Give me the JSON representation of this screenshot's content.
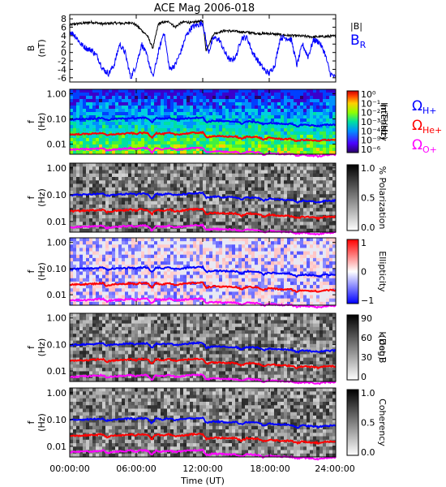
{
  "chart_data": {
    "type": "spectrogram",
    "title": "ACE Mag 2006-018",
    "xlabel": "Time (UT)",
    "x_ticks": [
      "00:00:00",
      "06:00:00",
      "12:00:00",
      "18:00:00",
      "24:00:00"
    ],
    "xlim_hours": [
      0,
      24
    ],
    "colors": {
      "black": "#000000",
      "blue": "#0000ff",
      "red": "#ff0000",
      "magenta": "#ff00ff"
    },
    "panels": [
      {
        "type": "line",
        "ylabel": [
          "B",
          "(nT)"
        ],
        "ylim": [
          -7,
          9
        ],
        "y_ticks": [
          "-6",
          "-4",
          "-2",
          "0",
          "2",
          "4",
          "6",
          "8"
        ],
        "y_tick_values": [
          -6,
          -4,
          -2,
          0,
          2,
          4,
          6,
          8
        ],
        "legend": [
          {
            "label": "|B|",
            "color": "#000000"
          },
          {
            "label": "B",
            "sub": "R",
            "color": "#0000ff"
          }
        ],
        "series": [
          {
            "name": "|B|",
            "color": "#000000",
            "x": [
              0,
              0.5,
              1,
              2,
              2.5,
              3,
              4,
              5,
              5.5,
              6,
              7,
              7.5,
              8,
              8.5,
              9,
              9.5,
              10,
              10.5,
              11,
              11.5,
              12,
              12.3,
              13,
              14,
              15,
              16,
              17,
              18,
              19,
              20,
              21,
              22,
              23,
              24
            ],
            "y": [
              6.5,
              6.8,
              6.9,
              7.2,
              7.0,
              6.8,
              7.0,
              6.9,
              7.2,
              6.5,
              4.0,
              1.0,
              6.8,
              7.2,
              7.3,
              6.0,
              7.0,
              7.3,
              7.0,
              7.4,
              7.5,
              0.5,
              4.5,
              5.2,
              5.0,
              4.8,
              4.5,
              4.5,
              4.2,
              4.0,
              3.9,
              3.7,
              3.8,
              3.9
            ]
          },
          {
            "name": "B",
            "color": "#0000ff",
            "x": [
              0,
              0.5,
              1,
              1.5,
              2,
              2.5,
              3,
              3.5,
              4,
              4.5,
              5,
              5.5,
              6,
              6.5,
              7,
              7.5,
              8,
              8.5,
              9,
              9.5,
              10,
              10.5,
              11,
              11.5,
              12,
              12.5,
              13,
              13.5,
              14,
              14.5,
              15,
              15.5,
              16,
              16.5,
              17,
              17.5,
              18,
              18.5,
              19,
              19.5,
              20,
              20.5,
              21,
              21.5,
              22,
              22.5,
              23,
              23.5,
              24
            ],
            "y": [
              5,
              4,
              2,
              1,
              0.5,
              -1,
              -4,
              -5,
              -3,
              2,
              0,
              -6,
              -3,
              2,
              -1,
              -6,
              0,
              5,
              -4,
              -3,
              0,
              4,
              6,
              6.5,
              7,
              0,
              3.5,
              3,
              0,
              -2,
              -1,
              3.5,
              3.5,
              0,
              -2,
              -4,
              -5,
              -3,
              3.5,
              3.5,
              3,
              -3,
              2,
              -1,
              3,
              2.5,
              0,
              -5,
              -6
            ]
          }
        ]
      },
      {
        "type": "heatmap",
        "ylabel": [
          "f",
          "(Hz)"
        ],
        "y_ticks": [
          "1.00",
          "0.10",
          "0.01"
        ],
        "y_tick_values": [
          1.0,
          0.1,
          0.01
        ],
        "ylim": [
          0.004,
          1.5
        ],
        "yscale": "log",
        "colorbar": {
          "label": [
            "Intensity",
            "(nT²/Hz)"
          ],
          "ticks": [
            "10⁰",
            "10⁻¹",
            "10⁻²",
            "10⁻³",
            "10⁻⁴",
            "10⁻⁵",
            "10⁻⁶"
          ],
          "colormap": "rainbow"
        },
        "legend": [
          {
            "label": "Ω",
            "sub": "H+",
            "color": "#0000ff"
          },
          {
            "label": "Ω",
            "sub": "He+",
            "color": "#ff0000"
          },
          {
            "label": "Ω",
            "sub": "O+",
            "color": "#ff00ff"
          }
        ]
      },
      {
        "type": "heatmap",
        "ylabel": [
          "f",
          "(Hz)"
        ],
        "y_ticks": [
          "1.00",
          "0.10",
          "0.01"
        ],
        "y_tick_values": [
          1.0,
          0.1,
          0.01
        ],
        "ylim": [
          0.004,
          1.5
        ],
        "yscale": "log",
        "colorbar": {
          "label": [
            "% Polarization"
          ],
          "ticks": [
            "1.0",
            "0.5",
            "0.0"
          ],
          "colormap": "gray"
        }
      },
      {
        "type": "heatmap",
        "ylabel": [
          "f",
          "(Hz)"
        ],
        "y_ticks": [
          "1.00",
          "0.10",
          "0.01"
        ],
        "y_tick_values": [
          1.0,
          0.1,
          0.01
        ],
        "ylim": [
          0.004,
          1.5
        ],
        "yscale": "log",
        "colorbar": {
          "label": [
            "Ellipticity"
          ],
          "ticks": [
            "1",
            "0",
            "−1"
          ],
          "colormap": "bwr"
        }
      },
      {
        "type": "heatmap",
        "ylabel": [
          "f",
          "(Hz)"
        ],
        "y_ticks": [
          "1.00",
          "0.10",
          "0.01"
        ],
        "y_tick_values": [
          1.0,
          0.1,
          0.01
        ],
        "ylim": [
          0.004,
          1.5
        ],
        "yscale": "log",
        "colorbar": {
          "label": [
            "k dot B",
            "(Deg)"
          ],
          "ticks": [
            "90",
            "60",
            "30",
            "0"
          ],
          "colormap": "gray"
        }
      },
      {
        "type": "heatmap",
        "ylabel": [
          "f",
          "(Hz)"
        ],
        "y_ticks": [
          "1.00",
          "0.10",
          "0.01"
        ],
        "y_tick_values": [
          1.0,
          0.1,
          0.01
        ],
        "ylim": [
          0.004,
          1.5
        ],
        "yscale": "log",
        "colorbar": {
          "label": [
            "Coherency"
          ],
          "ticks": [
            "1.0",
            "0.5",
            "0.0"
          ],
          "colormap": "gray"
        }
      }
    ],
    "gyrofrequency_curves": {
      "x": [
        0,
        1,
        2,
        3,
        3.3,
        4,
        5,
        5.5,
        6,
        6.2,
        7,
        7.4,
        7.8,
        8.3,
        9,
        9.5,
        10,
        11,
        12,
        12.3,
        13,
        14,
        15,
        15.5,
        16,
        17,
        17.5,
        18,
        19,
        20,
        20.5,
        21,
        22,
        22.5,
        23,
        24
      ],
      "H+": [
        0.095,
        0.1,
        0.102,
        0.11,
        0.09,
        0.1,
        0.105,
        0.11,
        0.1,
        0.11,
        0.11,
        0.07,
        0.11,
        0.1,
        0.11,
        0.095,
        0.1,
        0.11,
        0.115,
        0.075,
        0.085,
        0.08,
        0.08,
        0.065,
        0.08,
        0.075,
        0.06,
        0.07,
        0.065,
        0.063,
        0.05,
        0.06,
        0.055,
        0.052,
        0.058,
        0.06
      ],
      "He+": [
        0.024,
        0.025,
        0.026,
        0.028,
        0.022,
        0.025,
        0.026,
        0.028,
        0.025,
        0.028,
        0.028,
        0.018,
        0.028,
        0.025,
        0.028,
        0.024,
        0.025,
        0.028,
        0.029,
        0.019,
        0.021,
        0.02,
        0.02,
        0.016,
        0.02,
        0.019,
        0.015,
        0.018,
        0.016,
        0.016,
        0.013,
        0.015,
        0.014,
        0.013,
        0.015,
        0.015
      ],
      "O+": [
        0.006,
        0.0063,
        0.0064,
        0.007,
        0.0056,
        0.0063,
        0.0066,
        0.007,
        0.0063,
        0.007,
        0.007,
        0.0045,
        0.007,
        0.0063,
        0.007,
        0.006,
        0.0063,
        0.007,
        0.0072,
        0.0047,
        0.0053,
        0.005,
        0.005,
        0.0041,
        0.005,
        0.0047,
        0.0038,
        0.0045,
        0.0041,
        0.004,
        0.0035,
        0.0038,
        0.0035,
        0.0033,
        0.0037,
        0.0038
      ]
    }
  }
}
